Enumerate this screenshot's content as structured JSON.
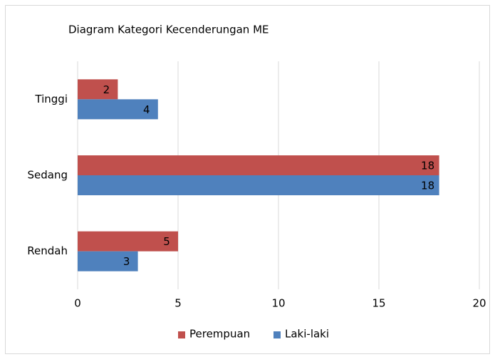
{
  "chart_data": {
    "type": "hbar",
    "title": "Diagram Kategori Kecenderungan ME",
    "categories": [
      "Tinggi",
      "Sedang",
      "Rendah"
    ],
    "series": [
      {
        "name": "Perempuan",
        "color": "#c0504d",
        "values": [
          2,
          18,
          5
        ]
      },
      {
        "name": "Laki-laki",
        "color": "#4f81bd",
        "values": [
          4,
          18,
          3
        ]
      }
    ],
    "xlim": [
      0,
      20
    ],
    "xticks": [
      0,
      5,
      10,
      15,
      20
    ],
    "grid": true,
    "legend": "bottom"
  }
}
